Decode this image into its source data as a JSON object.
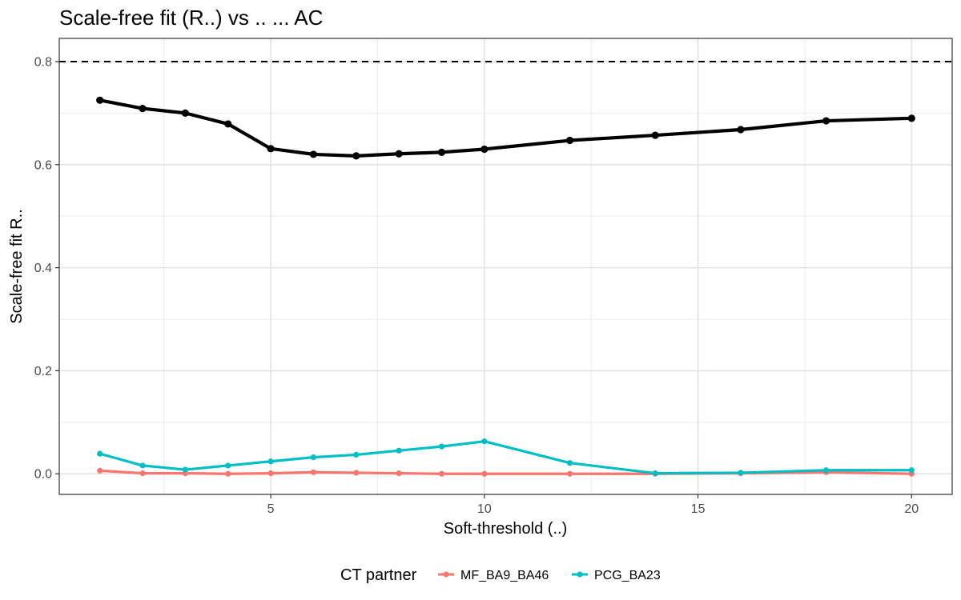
{
  "chart_data": {
    "type": "line",
    "title": "Scale-free fit (R..) vs .. ... AC",
    "xlabel": "Soft-threshold (..)",
    "ylabel": "Scale-free fit R..",
    "xlim": [
      0.05,
      20.95
    ],
    "ylim": [
      -0.04,
      0.845
    ],
    "x_ticks": [
      5,
      10,
      15,
      20
    ],
    "y_ticks": [
      0.0,
      0.2,
      0.4,
      0.6,
      0.8
    ],
    "x_tick_labels": [
      "5",
      "10",
      "15",
      "20"
    ],
    "y_tick_labels": [
      "0.0",
      "0.2",
      "0.4",
      "0.6",
      "0.8"
    ],
    "grid": true,
    "reference_line": {
      "y": 0.8,
      "style": "dashed",
      "color": "#000000"
    },
    "x": [
      1,
      2,
      3,
      4,
      5,
      6,
      7,
      8,
      9,
      10,
      12,
      14,
      16,
      18,
      20
    ],
    "series": [
      {
        "color": "#000000",
        "values": [
          0.725,
          0.709,
          0.7,
          0.679,
          0.631,
          0.62,
          0.617,
          0.621,
          0.624,
          0.63,
          0.647,
          0.657,
          0.668,
          0.685,
          0.69
        ]
      },
      {
        "name": "MF_BA9_BA46",
        "color": "#F8766D",
        "values": [
          0.006,
          0.001,
          0.001,
          0.0,
          0.001,
          0.003,
          0.002,
          0.001,
          0.0,
          0.0,
          0.0,
          0.0,
          0.001,
          0.003,
          0.0
        ]
      },
      {
        "name": "PCG_BA23",
        "color": "#00BFC4",
        "values": [
          0.039,
          0.016,
          0.008,
          0.016,
          0.024,
          0.032,
          0.037,
          0.045,
          0.053,
          0.063,
          0.021,
          0.001,
          0.002,
          0.007,
          0.007
        ]
      }
    ],
    "legend": {
      "title": "CT partner",
      "position": "bottom",
      "entries": [
        "MF_BA9_BA46",
        "PCG_BA23"
      ]
    }
  }
}
